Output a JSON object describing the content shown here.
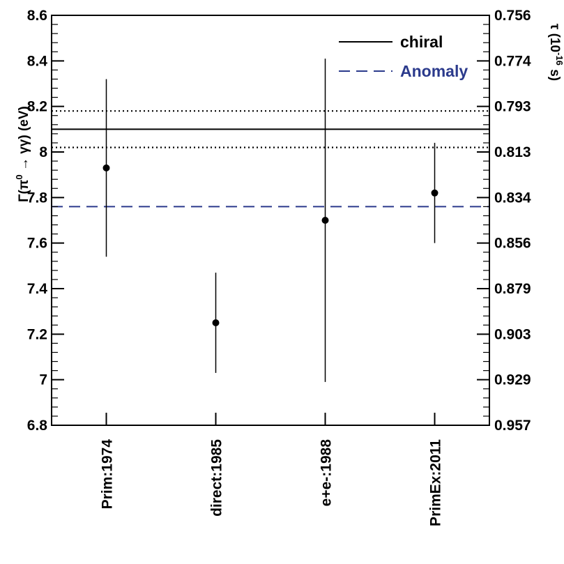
{
  "chart_data": {
    "type": "scatter",
    "categories": [
      "Prim:1974",
      "direct:1985",
      "e+e-:1988",
      "PrimEx:2011"
    ],
    "points": [
      {
        "category": "Prim:1974",
        "y": 7.93,
        "y_low": 7.54,
        "y_high": 8.32
      },
      {
        "category": "direct:1985",
        "y": 7.25,
        "y_low": 7.03,
        "y_high": 7.47
      },
      {
        "category": "e+e-:1988",
        "y": 7.7,
        "y_low": 6.99,
        "y_high": 8.41
      },
      {
        "category": "PrimEx:2011",
        "y": 7.82,
        "y_low": 7.6,
        "y_high": 8.04
      }
    ],
    "ylim": [
      6.8,
      8.6
    ],
    "y_ticks": [
      "6.8",
      "7",
      "7.2",
      "7.4",
      "7.6",
      "7.8",
      "8",
      "8.2",
      "8.4",
      "8.6"
    ],
    "ylabel_left": "Γ(π⁰ → γγ) (eV)",
    "ylabel_left_parts": {
      "pre": "Γ(π",
      "sup": "0",
      "post": " → γγ) (eV)"
    },
    "ylabel_right": "τ (10⁻¹⁶ s)",
    "ylabel_right_parts": {
      "pre": "τ (10",
      "sup": "-16",
      "post": " s)"
    },
    "right_ticks": [
      "0.957",
      "0.929",
      "0.903",
      "0.879",
      "0.856",
      "0.834",
      "0.813",
      "0.793",
      "0.774",
      "0.756"
    ],
    "reference_lines": [
      {
        "name": "chiral",
        "y": 8.1,
        "style": "solid",
        "color": "#000000",
        "legend": true
      },
      {
        "name": "chiral-band-upper",
        "y": 8.18,
        "style": "dotted",
        "color": "#000000",
        "legend": false
      },
      {
        "name": "chiral-band-lower",
        "y": 8.02,
        "style": "dotted",
        "color": "#000000",
        "legend": false
      },
      {
        "name": "Anomaly",
        "y": 7.76,
        "style": "dashed",
        "color": "#2b3a8c",
        "legend": true
      }
    ],
    "legend": [
      {
        "label": "chiral",
        "style": "solid",
        "color": "#000000"
      },
      {
        "label": "Anomaly",
        "style": "dashed",
        "color": "#2b3a8c"
      }
    ],
    "legend_position": "top-right",
    "grid": false
  }
}
